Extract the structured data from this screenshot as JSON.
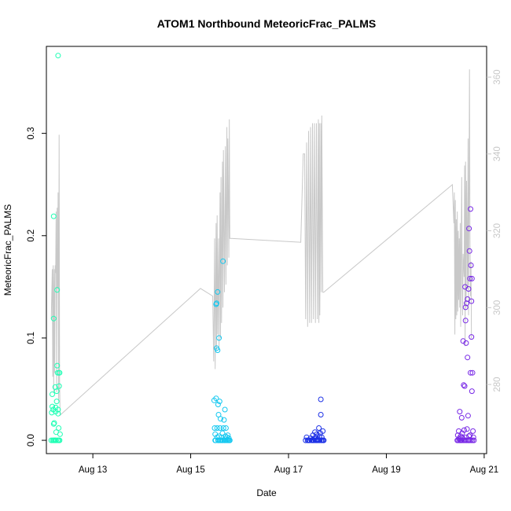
{
  "chart_data": {
    "type": "scatter",
    "title": "ATOM1 Northbound MeteoricFrac_PALMS",
    "xlabel": "Date",
    "ylabel": "MeteoricFrac_PALMS",
    "x_unit": "days since Aug 1",
    "xlim": [
      12.05,
      21.05
    ],
    "ylim": [
      -0.013,
      0.385
    ],
    "y2lim": [
      262,
      368
    ],
    "x_ticks": [
      {
        "label": "Aug 13",
        "value": 13
      },
      {
        "label": "Aug 15",
        "value": 15
      },
      {
        "label": "Aug 17",
        "value": 17
      },
      {
        "label": "Aug 19",
        "value": 19
      },
      {
        "label": "Aug 21",
        "value": 21
      }
    ],
    "y_ticks": [
      {
        "label": "0.0",
        "value": 0.0
      },
      {
        "label": "0.1",
        "value": 0.1
      },
      {
        "label": "0.2",
        "value": 0.2
      },
      {
        "label": "0.3",
        "value": 0.3
      }
    ],
    "y2_ticks": [
      {
        "label": "280",
        "value": 280
      },
      {
        "label": "300",
        "value": 300
      },
      {
        "label": "320",
        "value": 320
      },
      {
        "label": "340",
        "value": 340
      },
      {
        "label": "360",
        "value": 360
      }
    ],
    "series": [
      {
        "color": "#1EFFB4",
        "points": [
          [
            12.15,
            0.0
          ],
          [
            12.16,
            0.027
          ],
          [
            12.17,
            0.033
          ],
          [
            12.17,
            0.045
          ],
          [
            12.18,
            0.0
          ],
          [
            12.19,
            0.03
          ],
          [
            12.2,
            0.016
          ],
          [
            12.2,
            0.0
          ],
          [
            12.2,
            0.219
          ],
          [
            12.2,
            0.119
          ],
          [
            12.21,
            0.017
          ],
          [
            12.22,
            0.0
          ],
          [
            12.23,
            0.0
          ],
          [
            12.23,
            0.052
          ],
          [
            12.24,
            0.032
          ],
          [
            12.24,
            0.028
          ],
          [
            12.25,
            0.0
          ],
          [
            12.25,
            0.008
          ],
          [
            12.26,
            0.048
          ],
          [
            12.26,
            0.038
          ],
          [
            12.27,
            0.147
          ],
          [
            12.27,
            0.073
          ],
          [
            12.28,
            0.0
          ],
          [
            12.28,
            0.066
          ],
          [
            12.29,
            0.376
          ],
          [
            12.29,
            0.026
          ],
          [
            12.29,
            0.03
          ],
          [
            12.3,
            0.0
          ],
          [
            12.3,
            0.012
          ],
          [
            12.31,
            0.066
          ],
          [
            12.31,
            0.053
          ],
          [
            12.32,
            0.066
          ],
          [
            12.32,
            0.0
          ],
          [
            12.33,
            0.006
          ]
        ]
      },
      {
        "color": "#14C8F0",
        "points": [
          [
            15.48,
            0.039
          ],
          [
            15.49,
            0.012
          ],
          [
            15.5,
            0.0
          ],
          [
            15.5,
            0.006
          ],
          [
            15.51,
            0.0
          ],
          [
            15.52,
            0.133
          ],
          [
            15.52,
            0.041
          ],
          [
            15.53,
            0.134
          ],
          [
            15.53,
            0.09
          ],
          [
            15.54,
            0.012
          ],
          [
            15.54,
            0.003
          ],
          [
            15.55,
            0.145
          ],
          [
            15.55,
            0.088
          ],
          [
            15.56,
            0.0
          ],
          [
            15.56,
            0.035
          ],
          [
            15.57,
            0.025
          ],
          [
            15.57,
            0.0
          ],
          [
            15.58,
            0.1
          ],
          [
            15.58,
            0.004
          ],
          [
            15.59,
            0.038
          ],
          [
            15.6,
            0.0
          ],
          [
            15.6,
            0.012
          ],
          [
            15.61,
            0.021
          ],
          [
            15.62,
            0.0
          ],
          [
            15.63,
            0.003
          ],
          [
            15.64,
            0.0
          ],
          [
            15.65,
            0.007
          ],
          [
            15.66,
            0.175
          ],
          [
            15.66,
            0.0
          ],
          [
            15.67,
            0.012
          ],
          [
            15.68,
            0.02
          ],
          [
            15.69,
            0.0
          ],
          [
            15.7,
            0.03
          ],
          [
            15.7,
            0.0
          ],
          [
            15.71,
            0.004
          ],
          [
            15.72,
            0.012
          ],
          [
            15.73,
            0.0
          ],
          [
            15.74,
            0.003
          ],
          [
            15.75,
            0.0
          ],
          [
            15.76,
            0.005
          ],
          [
            15.77,
            0.0
          ],
          [
            15.78,
            0.002
          ],
          [
            15.79,
            0.0
          ],
          [
            15.8,
            0.0
          ]
        ]
      },
      {
        "color": "#1E32E6",
        "points": [
          [
            17.35,
            0.0
          ],
          [
            17.37,
            0.003
          ],
          [
            17.39,
            0.0
          ],
          [
            17.41,
            0.0
          ],
          [
            17.43,
            0.0
          ],
          [
            17.45,
            0.002
          ],
          [
            17.47,
            0.0
          ],
          [
            17.49,
            0.0
          ],
          [
            17.5,
            0.005
          ],
          [
            17.51,
            0.0
          ],
          [
            17.52,
            0.0
          ],
          [
            17.53,
            0.002
          ],
          [
            17.54,
            0.008
          ],
          [
            17.55,
            0.0
          ],
          [
            17.56,
            0.003
          ],
          [
            17.57,
            0.0
          ],
          [
            17.58,
            0.006
          ],
          [
            17.59,
            0.0
          ],
          [
            17.6,
            0.001
          ],
          [
            17.61,
            0.0
          ],
          [
            17.62,
            0.012
          ],
          [
            17.63,
            0.004
          ],
          [
            17.64,
            0.0
          ],
          [
            17.65,
            0.007
          ],
          [
            17.66,
            0.04
          ],
          [
            17.66,
            0.025
          ],
          [
            17.67,
            0.0
          ],
          [
            17.68,
            0.003
          ],
          [
            17.69,
            0.0
          ],
          [
            17.7,
            0.009
          ],
          [
            17.71,
            0.0
          ],
          [
            17.72,
            0.0
          ]
        ]
      },
      {
        "color": "#7828E6",
        "points": [
          [
            20.45,
            0.0
          ],
          [
            20.46,
            0.005
          ],
          [
            20.47,
            0.0
          ],
          [
            20.48,
            0.009
          ],
          [
            20.49,
            0.002
          ],
          [
            20.5,
            0.0
          ],
          [
            20.5,
            0.028
          ],
          [
            20.51,
            0.0
          ],
          [
            20.52,
            0.004
          ],
          [
            20.53,
            0.0
          ],
          [
            20.54,
            0.022
          ],
          [
            20.55,
            0.007
          ],
          [
            20.55,
            0.0
          ],
          [
            20.56,
            0.002
          ],
          [
            20.57,
            0.097
          ],
          [
            20.58,
            0.054
          ],
          [
            20.58,
            0.0
          ],
          [
            20.59,
            0.01
          ],
          [
            20.6,
            0.053
          ],
          [
            20.61,
            0.0
          ],
          [
            20.61,
            0.15
          ],
          [
            20.62,
            0.13
          ],
          [
            20.62,
            0.117
          ],
          [
            20.63,
            0.003
          ],
          [
            20.63,
            0.095
          ],
          [
            20.64,
            0.134
          ],
          [
            20.64,
            0.0
          ],
          [
            20.65,
            0.011
          ],
          [
            20.66,
            0.138
          ],
          [
            20.66,
            0.081
          ],
          [
            20.67,
            0.024
          ],
          [
            20.67,
            0.0
          ],
          [
            20.68,
            0.148
          ],
          [
            20.68,
            0.0
          ],
          [
            20.69,
            0.207
          ],
          [
            20.69,
            0.004
          ],
          [
            20.7,
            0.185
          ],
          [
            20.7,
            0.0
          ],
          [
            20.71,
            0.158
          ],
          [
            20.71,
            0.005
          ],
          [
            20.72,
            0.226
          ],
          [
            20.72,
            0.066
          ],
          [
            20.73,
            0.171
          ],
          [
            20.73,
            0.0
          ],
          [
            20.74,
            0.101
          ],
          [
            20.74,
            0.136
          ],
          [
            20.75,
            0.158
          ],
          [
            20.75,
            0.048
          ],
          [
            20.76,
            0.066
          ],
          [
            20.76,
            0.0
          ],
          [
            20.77,
            0.009
          ],
          [
            20.78,
            0.003
          ],
          [
            20.79,
            0.0
          ]
        ]
      }
    ],
    "secondary_line": {
      "color": "#c8c8c8",
      "points": [
        [
          12.15,
          297
        ],
        [
          12.17,
          310
        ],
        [
          12.18,
          282
        ],
        [
          12.19,
          311
        ],
        [
          12.2,
          278
        ],
        [
          12.21,
          310
        ],
        [
          12.22,
          283
        ],
        [
          12.23,
          311
        ],
        [
          12.24,
          309
        ],
        [
          12.25,
          325
        ],
        [
          12.26,
          278
        ],
        [
          12.27,
          326
        ],
        [
          12.28,
          305
        ],
        [
          12.29,
          330
        ],
        [
          12.3,
          276
        ],
        [
          12.31,
          345
        ],
        [
          12.32,
          281
        ],
        [
          12.33,
          272
        ],
        [
          15.2,
          305
        ],
        [
          15.45,
          303
        ],
        [
          15.47,
          286
        ],
        [
          15.49,
          318
        ],
        [
          15.5,
          284
        ],
        [
          15.52,
          322
        ],
        [
          15.53,
          289
        ],
        [
          15.54,
          324
        ],
        [
          15.55,
          293
        ],
        [
          15.57,
          318
        ],
        [
          15.58,
          289
        ],
        [
          15.6,
          330
        ],
        [
          15.61,
          292
        ],
        [
          15.62,
          334
        ],
        [
          15.63,
          296
        ],
        [
          15.65,
          338
        ],
        [
          15.66,
          300
        ],
        [
          15.67,
          341
        ],
        [
          15.69,
          304
        ],
        [
          15.71,
          342
        ],
        [
          15.72,
          306
        ],
        [
          15.74,
          347
        ],
        [
          15.75,
          311
        ],
        [
          15.76,
          344
        ],
        [
          15.78,
          313
        ],
        [
          15.79,
          349
        ],
        [
          15.8,
          318
        ],
        [
          15.82,
          318
        ],
        [
          17.25,
          317
        ],
        [
          17.3,
          340
        ],
        [
          17.33,
          340
        ],
        [
          17.35,
          297
        ],
        [
          17.37,
          343
        ],
        [
          17.39,
          295
        ],
        [
          17.41,
          346
        ],
        [
          17.43,
          296
        ],
        [
          17.45,
          347
        ],
        [
          17.47,
          296
        ],
        [
          17.49,
          348
        ],
        [
          17.51,
          297
        ],
        [
          17.53,
          348
        ],
        [
          17.55,
          296
        ],
        [
          17.57,
          348
        ],
        [
          17.59,
          297
        ],
        [
          17.61,
          349
        ],
        [
          17.62,
          296
        ],
        [
          17.63,
          348
        ],
        [
          17.64,
          298
        ],
        [
          17.66,
          348
        ],
        [
          17.67,
          304
        ],
        [
          17.68,
          350
        ],
        [
          17.7,
          304
        ],
        [
          17.72,
          304
        ],
        [
          20.35,
          332
        ],
        [
          20.38,
          322
        ],
        [
          20.39,
          330
        ],
        [
          20.4,
          293
        ],
        [
          20.41,
          328
        ],
        [
          20.42,
          297
        ],
        [
          20.43,
          323
        ],
        [
          20.44,
          298
        ],
        [
          20.45,
          325
        ],
        [
          20.46,
          299
        ],
        [
          20.47,
          320
        ],
        [
          20.48,
          302
        ],
        [
          20.49,
          318
        ],
        [
          20.5,
          300
        ],
        [
          20.51,
          322
        ],
        [
          20.52,
          295
        ],
        [
          20.54,
          334
        ],
        [
          20.55,
          305
        ],
        [
          20.56,
          298
        ],
        [
          20.57,
          314
        ],
        [
          20.59,
          308
        ],
        [
          20.6,
          337
        ],
        [
          20.61,
          290
        ],
        [
          20.62,
          338
        ],
        [
          20.63,
          300
        ],
        [
          20.64,
          333
        ],
        [
          20.66,
          305
        ],
        [
          20.67,
          344
        ],
        [
          20.68,
          298
        ],
        [
          20.7,
          362
        ],
        [
          20.71,
          318
        ],
        [
          20.72,
          303
        ],
        [
          20.73,
          312
        ],
        [
          20.74,
          292
        ]
      ]
    }
  }
}
